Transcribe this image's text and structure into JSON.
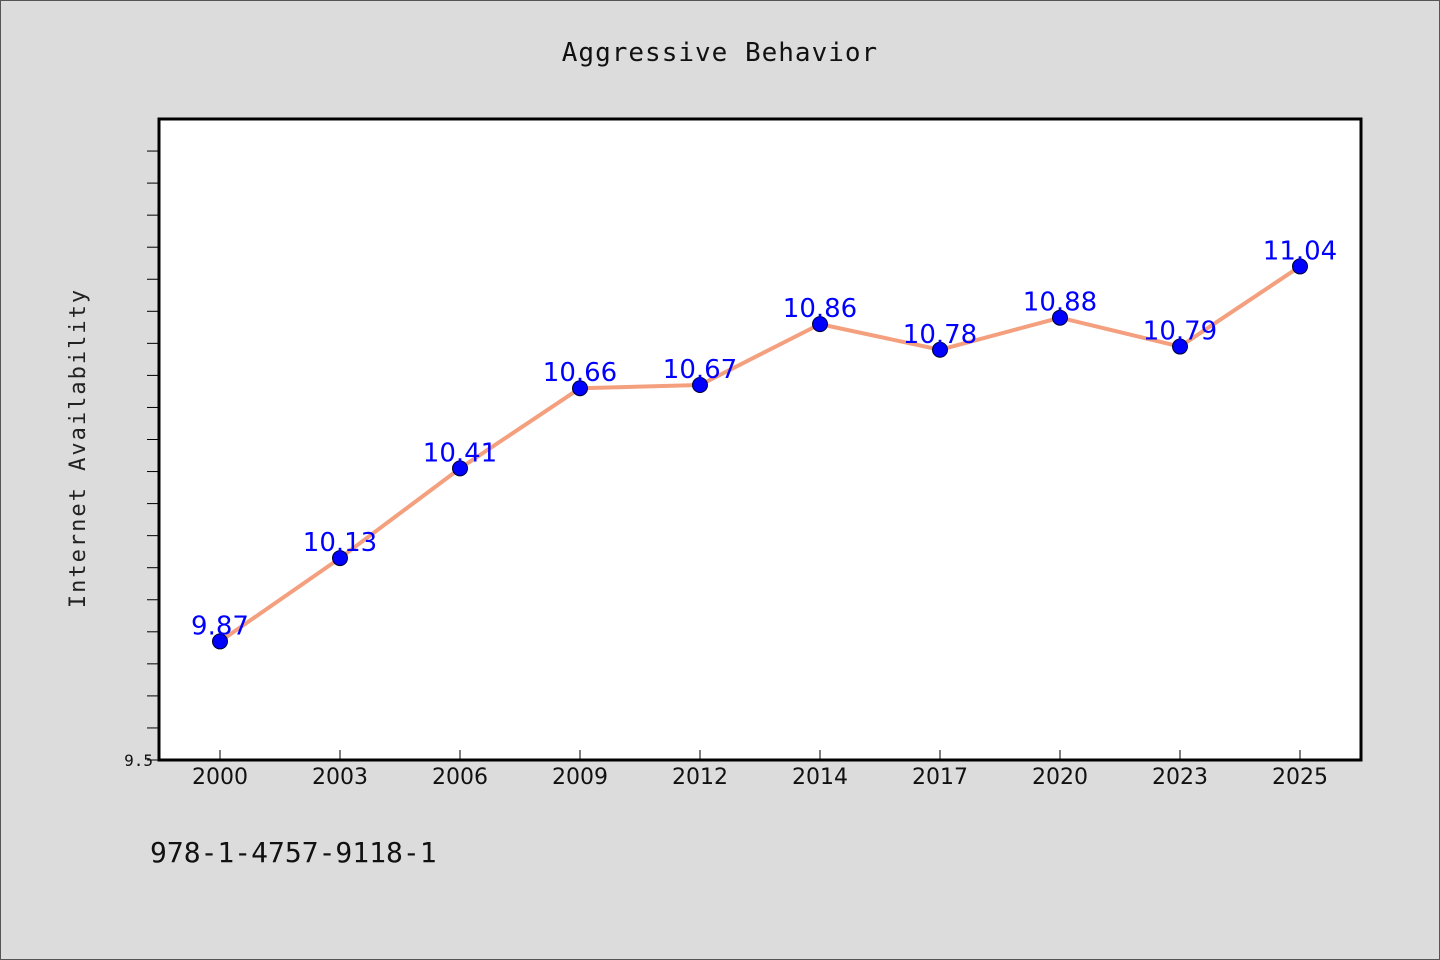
{
  "chart_data": {
    "type": "line",
    "title": "Aggressive Behavior",
    "xlabel": "",
    "ylabel": "Internet Availability",
    "categories": [
      "2000",
      "2003",
      "2006",
      "2009",
      "2012",
      "2014",
      "2017",
      "2020",
      "2023",
      "2025"
    ],
    "series": [
      {
        "values": [
          9.87,
          10.13,
          10.41,
          10.66,
          10.67,
          10.86,
          10.78,
          10.88,
          10.79,
          11.04
        ]
      }
    ],
    "data_labels": [
      "9.87",
      "10.13",
      "10.41",
      "10.66",
      "10.67",
      "10.86",
      "10.78",
      "10.88",
      "10.79",
      "11.04"
    ],
    "y_tick_labels": [
      "9.5"
    ],
    "ylim": [
      9.5,
      11.5
    ],
    "grid": false,
    "legend": "none",
    "colors": {
      "line": "#f4a07e",
      "marker": "#0000ff",
      "data_label": "#0000ff",
      "plot_background": "#ffffff",
      "page_background": "#dcdcdc"
    }
  },
  "footer": {
    "isbn": "978-1-4757-9118-1"
  }
}
